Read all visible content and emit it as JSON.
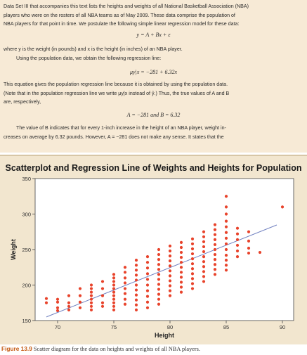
{
  "text": {
    "para1": [
      "Data Set III that accompanies this text lists the heights and weights of all National Basketball Association (NBA)",
      "players who were on the rosters of all NBA teams as of May 2009. These data comprise the population of",
      "NBA players for that point in time. We postulate the following simple linear regression model for these data:"
    ],
    "eq1": "y = A + Bx + ε",
    "para2": [
      "where y is the weight (in pounds) and x is the height (in inches) of an NBA player.",
      "Using the population data, we obtain the following regression line:"
    ],
    "eq2": "μy|x = −281 + 6.32x",
    "para3": [
      "This equation gives the population regression line because it is obtained by using the population data.",
      "(Note that in the population regression line we write μy|x instead of ŷ.) Thus, the true values of A and B",
      "are, respectively,"
    ],
    "eq3": "A = −281   and   B = 6.32",
    "para4": [
      "The value of B indicates that for every 1-inch increase in the height of an NBA player, weight in-",
      "creases on average by 6.32 pounds. However, A = −281 does not make any sense. It states that the"
    ]
  },
  "caption": {
    "number": "Figure 13.9",
    "text": "Scatter diagram for the data on heights and weights of all NBA players."
  },
  "colors": {
    "points": "#e8432b",
    "line": "#7080c0",
    "plot_background": "#ffffff",
    "panel_background": "#f2e6cf"
  },
  "chart_data": {
    "type": "scatter",
    "title": "Scatterplot and Regression Line of Weights and Heights for Population",
    "xlabel": "Height",
    "ylabel": "Weight",
    "xlim": [
      68,
      91
    ],
    "ylim": [
      150,
      350
    ],
    "xticks": [
      "70",
      "75",
      "80",
      "85",
      "90"
    ],
    "yticks": [
      "150",
      "200",
      "250",
      "300",
      "350"
    ],
    "regression": {
      "intercept": -281,
      "slope": 6.32
    },
    "points": [
      [
        69,
        181
      ],
      [
        69,
        175
      ],
      [
        70,
        180
      ],
      [
        70,
        176
      ],
      [
        70,
        168
      ],
      [
        70,
        164
      ],
      [
        71,
        170
      ],
      [
        71,
        165
      ],
      [
        71,
        175
      ],
      [
        71,
        185
      ],
      [
        72,
        195
      ],
      [
        72,
        185
      ],
      [
        72,
        176
      ],
      [
        72,
        168
      ],
      [
        73,
        200
      ],
      [
        73,
        195
      ],
      [
        73,
        190
      ],
      [
        73,
        185
      ],
      [
        73,
        180
      ],
      [
        73,
        175
      ],
      [
        73,
        170
      ],
      [
        73,
        165
      ],
      [
        74,
        205
      ],
      [
        74,
        195
      ],
      [
        74,
        185
      ],
      [
        74,
        175
      ],
      [
        74,
        170
      ],
      [
        75,
        215
      ],
      [
        75,
        210
      ],
      [
        75,
        205
      ],
      [
        75,
        200
      ],
      [
        75,
        195
      ],
      [
        75,
        190
      ],
      [
        75,
        185
      ],
      [
        75,
        180
      ],
      [
        75,
        175
      ],
      [
        75,
        170
      ],
      [
        75,
        165
      ],
      [
        76,
        225
      ],
      [
        76,
        218
      ],
      [
        76,
        210
      ],
      [
        76,
        203
      ],
      [
        76,
        195
      ],
      [
        76,
        188
      ],
      [
        76,
        180
      ],
      [
        76,
        173
      ],
      [
        77,
        235
      ],
      [
        77,
        228
      ],
      [
        77,
        221
      ],
      [
        77,
        214
      ],
      [
        77,
        207
      ],
      [
        77,
        200
      ],
      [
        77,
        193
      ],
      [
        77,
        186
      ],
      [
        77,
        179
      ],
      [
        77,
        172
      ],
      [
        77,
        165
      ],
      [
        78,
        240
      ],
      [
        78,
        232
      ],
      [
        78,
        224
      ],
      [
        78,
        216
      ],
      [
        78,
        208
      ],
      [
        78,
        200
      ],
      [
        78,
        192
      ],
      [
        78,
        184
      ],
      [
        78,
        176
      ],
      [
        78,
        168
      ],
      [
        79,
        250
      ],
      [
        79,
        243
      ],
      [
        79,
        236
      ],
      [
        79,
        229
      ],
      [
        79,
        222
      ],
      [
        79,
        215
      ],
      [
        79,
        208
      ],
      [
        79,
        201
      ],
      [
        79,
        194
      ],
      [
        79,
        187
      ],
      [
        79,
        180
      ],
      [
        79,
        173
      ],
      [
        80,
        255
      ],
      [
        80,
        248
      ],
      [
        80,
        241
      ],
      [
        80,
        234
      ],
      [
        80,
        227
      ],
      [
        80,
        220
      ],
      [
        80,
        213
      ],
      [
        80,
        206
      ],
      [
        80,
        199
      ],
      [
        80,
        192
      ],
      [
        80,
        185
      ],
      [
        81,
        260
      ],
      [
        81,
        253
      ],
      [
        81,
        246
      ],
      [
        81,
        239
      ],
      [
        81,
        232
      ],
      [
        81,
        225
      ],
      [
        81,
        218
      ],
      [
        81,
        211
      ],
      [
        81,
        204
      ],
      [
        81,
        197
      ],
      [
        81,
        190
      ],
      [
        82,
        265
      ],
      [
        82,
        258
      ],
      [
        82,
        251
      ],
      [
        82,
        244
      ],
      [
        82,
        237
      ],
      [
        82,
        230
      ],
      [
        82,
        223
      ],
      [
        82,
        216
      ],
      [
        82,
        209
      ],
      [
        82,
        202
      ],
      [
        82,
        195
      ],
      [
        83,
        275
      ],
      [
        83,
        268
      ],
      [
        83,
        261
      ],
      [
        83,
        254
      ],
      [
        83,
        247
      ],
      [
        83,
        240
      ],
      [
        83,
        233
      ],
      [
        83,
        226
      ],
      [
        83,
        219
      ],
      [
        83,
        212
      ],
      [
        83,
        205
      ],
      [
        84,
        285
      ],
      [
        84,
        278
      ],
      [
        84,
        271
      ],
      [
        84,
        264
      ],
      [
        84,
        257
      ],
      [
        84,
        250
      ],
      [
        84,
        243
      ],
      [
        84,
        236
      ],
      [
        84,
        229
      ],
      [
        84,
        222
      ],
      [
        84,
        215
      ],
      [
        85,
        325
      ],
      [
        85,
        310
      ],
      [
        85,
        300
      ],
      [
        85,
        290
      ],
      [
        85,
        282
      ],
      [
        85,
        274
      ],
      [
        85,
        266
      ],
      [
        85,
        258
      ],
      [
        85,
        250
      ],
      [
        85,
        242
      ],
      [
        85,
        235
      ],
      [
        85,
        228
      ],
      [
        85,
        221
      ],
      [
        86,
        280
      ],
      [
        86,
        272
      ],
      [
        86,
        264
      ],
      [
        86,
        256
      ],
      [
        86,
        248
      ],
      [
        86,
        240
      ],
      [
        87,
        275
      ],
      [
        87,
        262
      ],
      [
        87,
        252
      ],
      [
        87,
        245
      ],
      [
        88,
        246
      ],
      [
        90,
        310
      ]
    ]
  }
}
